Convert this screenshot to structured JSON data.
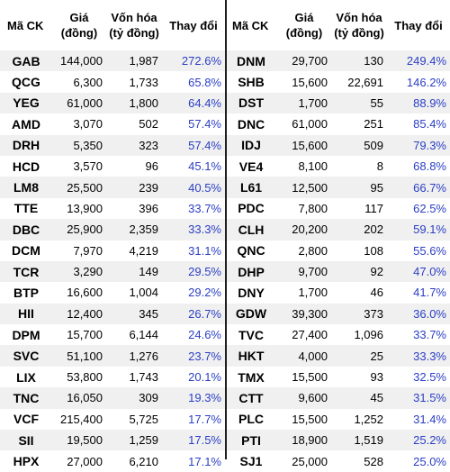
{
  "headers": {
    "code": "Mã CK",
    "price_line1": "Giá",
    "price_line2": "(đồng)",
    "cap_line1": "Vốn hóa",
    "cap_line2": "(tỷ đồng)",
    "change": "Thay đổi"
  },
  "colors": {
    "change_text": "#2b3fc4",
    "stripe": "#f0f0f0",
    "divider": "#1f1f1f"
  },
  "left": [
    {
      "code": "GAB",
      "price": "144,000",
      "cap": "1,987",
      "change": "272.6%"
    },
    {
      "code": "QCG",
      "price": "6,300",
      "cap": "1,733",
      "change": "65.8%"
    },
    {
      "code": "YEG",
      "price": "61,000",
      "cap": "1,800",
      "change": "64.4%"
    },
    {
      "code": "AMD",
      "price": "3,070",
      "cap": "502",
      "change": "57.4%"
    },
    {
      "code": "DRH",
      "price": "5,350",
      "cap": "323",
      "change": "57.4%"
    },
    {
      "code": "HCD",
      "price": "3,570",
      "cap": "96",
      "change": "45.1%"
    },
    {
      "code": "LM8",
      "price": "25,500",
      "cap": "239",
      "change": "40.5%"
    },
    {
      "code": "TTE",
      "price": "13,900",
      "cap": "396",
      "change": "33.7%"
    },
    {
      "code": "DBC",
      "price": "25,900",
      "cap": "2,359",
      "change": "33.3%"
    },
    {
      "code": "DCM",
      "price": "7,970",
      "cap": "4,219",
      "change": "31.1%"
    },
    {
      "code": "TCR",
      "price": "3,290",
      "cap": "149",
      "change": "29.5%"
    },
    {
      "code": "BTP",
      "price": "16,600",
      "cap": "1,004",
      "change": "29.2%"
    },
    {
      "code": "HII",
      "price": "12,400",
      "cap": "345",
      "change": "26.7%"
    },
    {
      "code": "DPM",
      "price": "15,700",
      "cap": "6,144",
      "change": "24.6%"
    },
    {
      "code": "SVC",
      "price": "51,100",
      "cap": "1,276",
      "change": "23.7%"
    },
    {
      "code": "LIX",
      "price": "53,800",
      "cap": "1,743",
      "change": "20.1%"
    },
    {
      "code": "TNC",
      "price": "16,050",
      "cap": "309",
      "change": "19.3%"
    },
    {
      "code": "VCF",
      "price": "215,400",
      "cap": "5,725",
      "change": "17.7%"
    },
    {
      "code": "SII",
      "price": "19,500",
      "cap": "1,259",
      "change": "17.5%"
    },
    {
      "code": "HPX",
      "price": "27,000",
      "cap": "6,210",
      "change": "17.1%"
    }
  ],
  "right": [
    {
      "code": "DNM",
      "price": "29,700",
      "cap": "130",
      "change": "249.4%"
    },
    {
      "code": "SHB",
      "price": "15,600",
      "cap": "22,691",
      "change": "146.2%"
    },
    {
      "code": "DST",
      "price": "1,700",
      "cap": "55",
      "change": "88.9%"
    },
    {
      "code": "DNC",
      "price": "61,000",
      "cap": "251",
      "change": "85.4%"
    },
    {
      "code": "IDJ",
      "price": "15,600",
      "cap": "509",
      "change": "79.3%"
    },
    {
      "code": "VE4",
      "price": "8,100",
      "cap": "8",
      "change": "68.8%"
    },
    {
      "code": "L61",
      "price": "12,500",
      "cap": "95",
      "change": "66.7%"
    },
    {
      "code": "PDC",
      "price": "7,800",
      "cap": "117",
      "change": "62.5%"
    },
    {
      "code": "CLH",
      "price": "20,200",
      "cap": "202",
      "change": "59.1%"
    },
    {
      "code": "QNC",
      "price": "2,800",
      "cap": "108",
      "change": "55.6%"
    },
    {
      "code": "DHP",
      "price": "9,700",
      "cap": "92",
      "change": "47.0%"
    },
    {
      "code": "DNY",
      "price": "1,700",
      "cap": "46",
      "change": "41.7%"
    },
    {
      "code": "GDW",
      "price": "39,300",
      "cap": "373",
      "change": "36.0%"
    },
    {
      "code": "TVC",
      "price": "27,400",
      "cap": "1,096",
      "change": "33.7%"
    },
    {
      "code": "HKT",
      "price": "4,000",
      "cap": "25",
      "change": "33.3%"
    },
    {
      "code": "TMX",
      "price": "15,500",
      "cap": "93",
      "change": "32.5%"
    },
    {
      "code": "CTT",
      "price": "9,600",
      "cap": "45",
      "change": "31.5%"
    },
    {
      "code": "PLC",
      "price": "15,500",
      "cap": "1,252",
      "change": "31.4%"
    },
    {
      "code": "PTI",
      "price": "18,900",
      "cap": "1,519",
      "change": "25.2%"
    },
    {
      "code": "SJ1",
      "price": "25,000",
      "cap": "528",
      "change": "25.0%"
    }
  ]
}
